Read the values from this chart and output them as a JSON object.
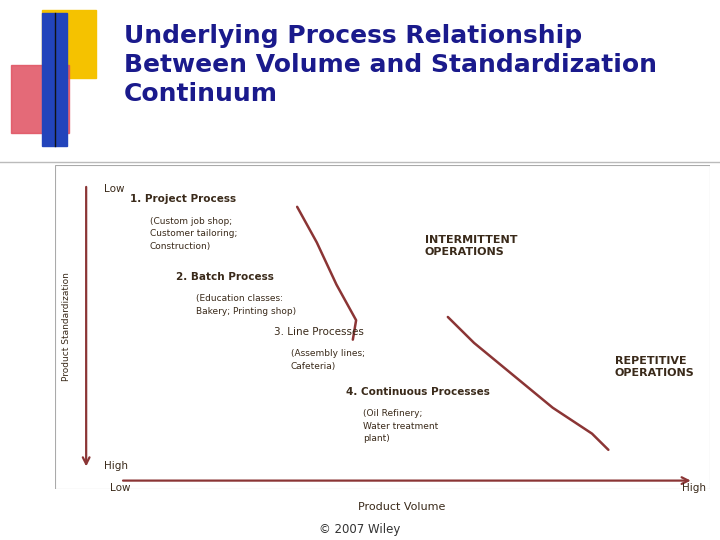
{
  "title_line1": "Underlying Process Relationship",
  "title_line2": "Between Volume and Standardization",
  "title_line3": "Continuum",
  "title_color": "#1a1a8c",
  "title_fontsize": 18,
  "copyright": "© 2007 Wiley",
  "bg_color": "#ffffff",
  "chart_bg_color": "#d8c8ae",
  "curve_color": "#8b3535",
  "arrow_color": "#8b3535",
  "y_axis_label": "Product Standardization",
  "x_axis_label": "Product Volume",
  "y_low_label": "Low",
  "y_high_label": "High",
  "x_low_label": "Low",
  "x_high_label": "High",
  "process1_title": "1. Project Process",
  "process1_sub": "(Custom job shop;\nCustomer tailoring;\nConstruction)",
  "process2_title": "2. Batch Process",
  "process2_sub": "(Education classes:\nBakery; Printing shop)",
  "process3_title": "3. Line Processes",
  "process3_sub": "(Assembly lines;\nCafeteria)",
  "process4_title": "4. Continuous Processes",
  "process4_sub": "(Oil Refinery;\nWater treatment\nplant)",
  "label_intermittent": "INTERMITTENT\nOPERATIONS",
  "label_repetitive": "REPETITIVE\nOPERATIONS",
  "text_color": "#3a2a1a",
  "curve1_x": [
    0.37,
    0.4,
    0.43,
    0.46,
    0.455
  ],
  "curve1_y": [
    0.87,
    0.76,
    0.63,
    0.52,
    0.46
  ],
  "curve2_x": [
    0.6,
    0.64,
    0.7,
    0.76,
    0.82,
    0.845
  ],
  "curve2_y": [
    0.53,
    0.45,
    0.35,
    0.25,
    0.17,
    0.12
  ],
  "logo_yellow": "#f5c200",
  "logo_pink": "#e05060",
  "logo_blue": "#2244bb"
}
